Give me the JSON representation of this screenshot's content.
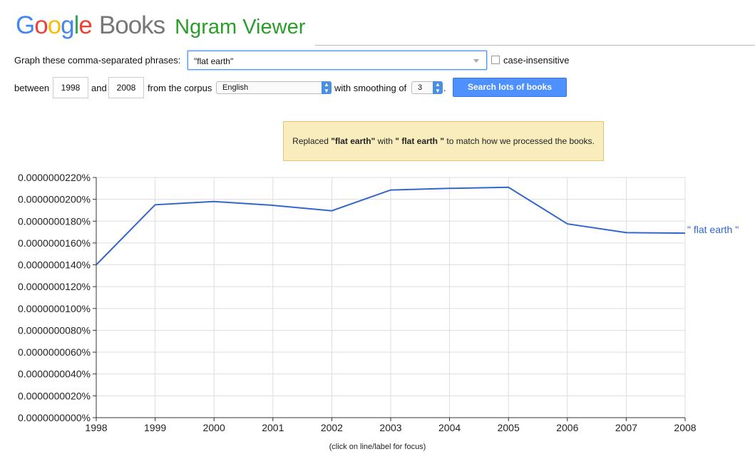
{
  "header": {
    "logo_google": [
      "G",
      "o",
      "o",
      "g",
      "l",
      "e"
    ],
    "logo_books": "Books",
    "logo_ngram": "Ngram Viewer"
  },
  "form": {
    "phrase_label": "Graph these comma-separated phrases:",
    "phrase_value": "\"flat earth\"",
    "case_label": "case-insensitive",
    "case_checked": false,
    "between_label": "between",
    "start_year": "1998",
    "and_label": "and",
    "end_year": "2008",
    "corpus_label": "from the corpus",
    "corpus_value": "English",
    "smoothing_label": "with smoothing of",
    "smoothing_value": "3",
    "period": ".",
    "search_button": "Search lots of books"
  },
  "notice": {
    "prefix": "Replaced ",
    "original": "\"flat earth\"",
    "middle": " with ",
    "replacement": "\" flat earth \"",
    "suffix": " to match how we processed the books."
  },
  "chart_data": {
    "type": "line",
    "x": [
      1998,
      1999,
      2000,
      2001,
      2002,
      2003,
      2004,
      2005,
      2006,
      2007,
      2008
    ],
    "series": [
      {
        "name": "\" flat earth \"",
        "color": "#3366cc",
        "values": [
          1.4e-07,
          1.95e-07,
          1.98e-07,
          1.945e-07,
          1.895e-07,
          2.085e-07,
          2.1e-07,
          2.11e-07,
          1.775e-07,
          1.695e-07,
          1.69e-07
        ]
      }
    ],
    "xlim": [
      1998,
      2008
    ],
    "ylim": [
      0,
      2.2e-07
    ],
    "y_ticks": [
      "0.0000000000%",
      "0.0000000020%",
      "0.0000000040%",
      "0.0000000060%",
      "0.0000000080%",
      "0.0000000100%",
      "0.0000000120%",
      "0.0000000140%",
      "0.0000000160%",
      "0.0000000180%",
      "0.0000000200%",
      "0.0000000220%"
    ],
    "x_ticks": [
      "1998",
      "1999",
      "2000",
      "2001",
      "2002",
      "2003",
      "2004",
      "2005",
      "2006",
      "2007",
      "2008"
    ],
    "grid": true,
    "legend": "end-of-line label"
  },
  "footnote": "(click on line/label for focus)"
}
